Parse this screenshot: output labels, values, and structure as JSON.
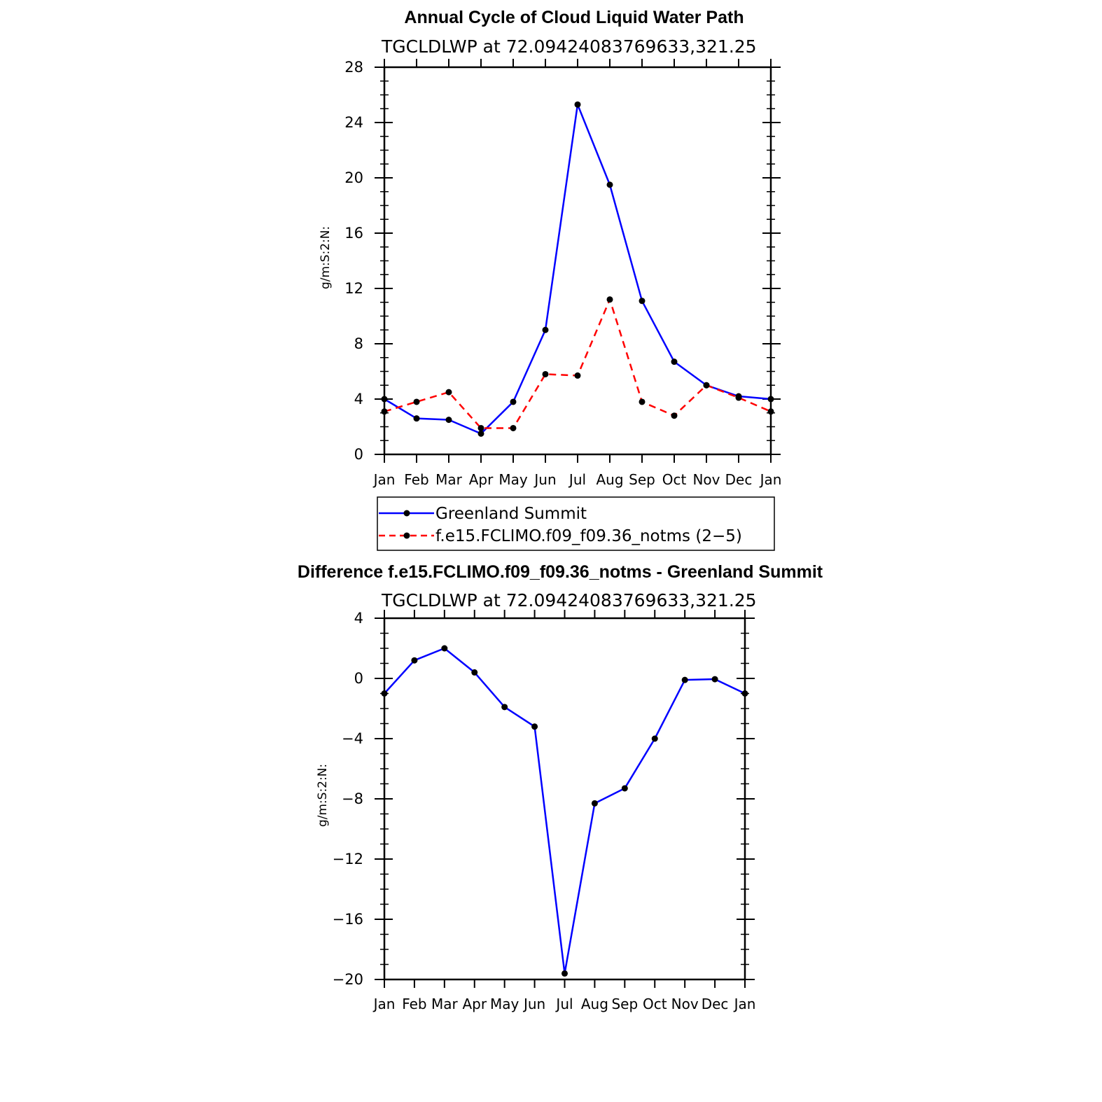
{
  "chart_data": [
    {
      "type": "line",
      "title": "Annual Cycle of Cloud Liquid Water Path",
      "subtitle": "TGCLDLWP  at  72.09424083769633,321.25",
      "xlabel": "",
      "ylabel": "g/m:S:2:N:",
      "categories": [
        "Jan",
        "Feb",
        "Mar",
        "Apr",
        "May",
        "Jun",
        "Jul",
        "Aug",
        "Sep",
        "Oct",
        "Nov",
        "Dec",
        "Jan"
      ],
      "ylim": [
        0,
        28
      ],
      "yticks": [
        0,
        4,
        8,
        12,
        16,
        20,
        24,
        28
      ],
      "ytick_labels": [
        "0",
        "4",
        "8",
        "12",
        "16",
        "20",
        "24",
        "28"
      ],
      "series": [
        {
          "name": "Greenland Summit",
          "color": "#0000ff",
          "dash": "solid",
          "marker": "circle",
          "values": [
            4.0,
            2.6,
            2.5,
            1.5,
            3.8,
            9.0,
            25.3,
            19.5,
            11.1,
            6.7,
            5.0,
            4.2,
            4.0
          ]
        },
        {
          "name": "f.e15.FCLIMO.f09_f09.36_notms (2−5)",
          "color": "#ff0000",
          "dash": "dashed",
          "marker": "circle",
          "values": [
            3.1,
            3.8,
            4.5,
            1.9,
            1.9,
            5.8,
            5.7,
            11.2,
            3.8,
            2.8,
            5.0,
            4.1,
            3.1
          ]
        }
      ],
      "legend": {
        "position": "below",
        "entries": [
          "Greenland Summit",
          "f.e15.FCLIMO.f09_f09.36_notms (2−5)"
        ]
      }
    },
    {
      "type": "line",
      "title": "Difference f.e15.FCLIMO.f09_f09.36_notms - Greenland Summit",
      "subtitle": "TGCLDLWP  at  72.09424083769633,321.25",
      "xlabel": "",
      "ylabel": "g/m:S:2:N:",
      "categories": [
        "Jan",
        "Feb",
        "Mar",
        "Apr",
        "May",
        "Jun",
        "Jul",
        "Aug",
        "Sep",
        "Oct",
        "Nov",
        "Dec",
        "Jan"
      ],
      "ylim": [
        -20,
        4
      ],
      "yticks": [
        -20,
        -16,
        -12,
        -8,
        -4,
        0,
        4
      ],
      "ytick_labels": [
        "−20",
        "−16",
        "−12",
        "−8",
        "−4",
        "0",
        "4"
      ],
      "series": [
        {
          "name": "Difference",
          "color": "#0000ff",
          "dash": "solid",
          "marker": "circle",
          "values": [
            -1.0,
            1.2,
            2.0,
            0.4,
            -1.9,
            -3.2,
            -19.6,
            -8.3,
            -7.3,
            -4.0,
            -0.1,
            -0.05,
            -1.0
          ]
        }
      ]
    }
  ]
}
